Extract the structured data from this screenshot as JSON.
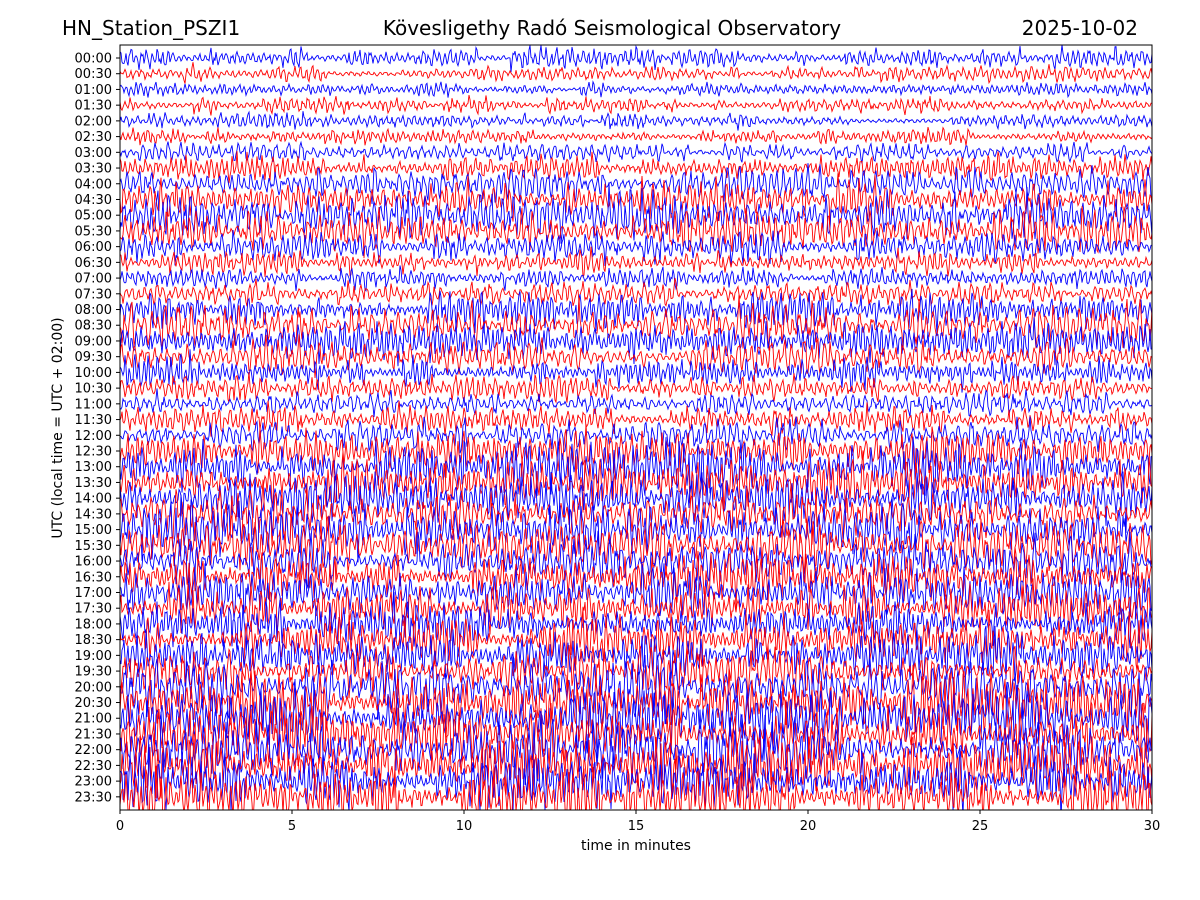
{
  "header": {
    "station": "HN_Station_PSZI1",
    "observatory": "Kövesligethy Radó Seismological Observatory",
    "date": "2025-10-02"
  },
  "chart_data": {
    "type": "line",
    "title": "Kövesligethy Radó Seismological Observatory",
    "xlabel": "time in minutes",
    "ylabel": "UTC (local time = UTC + 02:00)",
    "xlim": [
      0,
      30
    ],
    "x_ticks": [
      "0",
      "5",
      "10",
      "15",
      "20",
      "25",
      "30"
    ],
    "y_ticks": [
      "00:00",
      "00:30",
      "01:00",
      "01:30",
      "02:00",
      "02:30",
      "03:00",
      "03:30",
      "04:00",
      "04:30",
      "05:00",
      "05:30",
      "06:00",
      "06:30",
      "07:00",
      "07:30",
      "08:00",
      "08:30",
      "09:00",
      "09:30",
      "10:00",
      "10:30",
      "11:00",
      "11:30",
      "12:00",
      "12:30",
      "13:00",
      "13:30",
      "14:00",
      "14:30",
      "15:00",
      "15:30",
      "16:00",
      "16:30",
      "17:00",
      "17:30",
      "18:00",
      "18:30",
      "19:00",
      "19:30",
      "20:00",
      "20:30",
      "21:00",
      "21:30",
      "22:00",
      "22:30",
      "23:00",
      "23:30"
    ],
    "trace_colors": [
      "#0000ff",
      "#ff0000"
    ],
    "trace_amplitude_level": [
      0.8,
      0.6,
      0.55,
      0.6,
      0.6,
      0.6,
      0.7,
      1.0,
      1.3,
      1.6,
      1.8,
      1.6,
      1.3,
      1.0,
      0.8,
      0.9,
      1.4,
      1.6,
      1.5,
      1.4,
      1.2,
      1.0,
      0.9,
      1.1,
      1.3,
      1.7,
      1.9,
      1.9,
      2.0,
      2.0,
      2.0,
      2.0,
      1.9,
      1.9,
      1.8,
      1.8,
      1.8,
      1.8,
      1.9,
      2.0,
      2.2,
      2.3,
      2.4,
      2.4,
      2.4,
      2.3,
      2.3,
      2.3
    ],
    "grid": false,
    "legend": "none"
  }
}
